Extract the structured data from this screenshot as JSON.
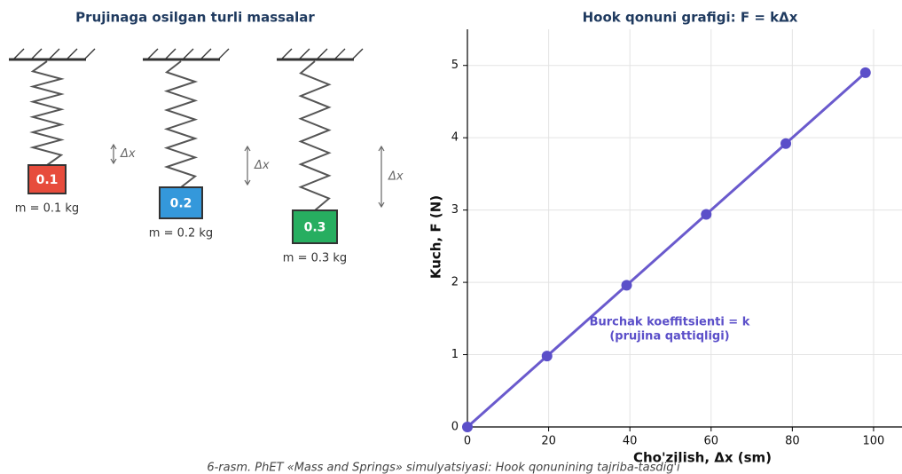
{
  "diagram": {
    "title": "Prujinaga osilgan turli massalar",
    "springs": [
      {
        "mass": "0.1",
        "label": "m = 0.1 kg",
        "dx": "Δx",
        "color": "#e74c3c"
      },
      {
        "mass": "0.2",
        "label": "m = 0.2 kg",
        "dx": "Δx",
        "color": "#3498db"
      },
      {
        "mass": "0.3",
        "label": "m = 0.3 kg",
        "dx": "Δx",
        "color": "#27ae60"
      }
    ]
  },
  "chart_data": {
    "type": "line",
    "title": "Hook qonuni grafigi: F = kΔx",
    "x_label": "Cho'zilish, Δx (sm)",
    "y_label": "Kuch, F (N)",
    "x": [
      0,
      19.6,
      39.2,
      58.8,
      78.4,
      98
    ],
    "values": [
      0,
      0.98,
      1.96,
      2.94,
      3.92,
      4.9
    ],
    "color": "#6a5acd",
    "marker_color": "#5b4fc9",
    "xlim": [
      0,
      107
    ],
    "ylim": [
      0,
      5.5
    ],
    "xticks": [
      0,
      20,
      40,
      60,
      80,
      100
    ],
    "yticks": [
      0,
      1,
      2,
      3,
      4,
      5
    ],
    "grid": true,
    "annotation": [
      "Burchak koeffitsienti = k",
      "(prujina qattiqligi)"
    ]
  },
  "caption": "6-rasm. PhET «Mass and Springs» simulyatsiyasi: Hook qonunining tajriba-tasdig'i"
}
